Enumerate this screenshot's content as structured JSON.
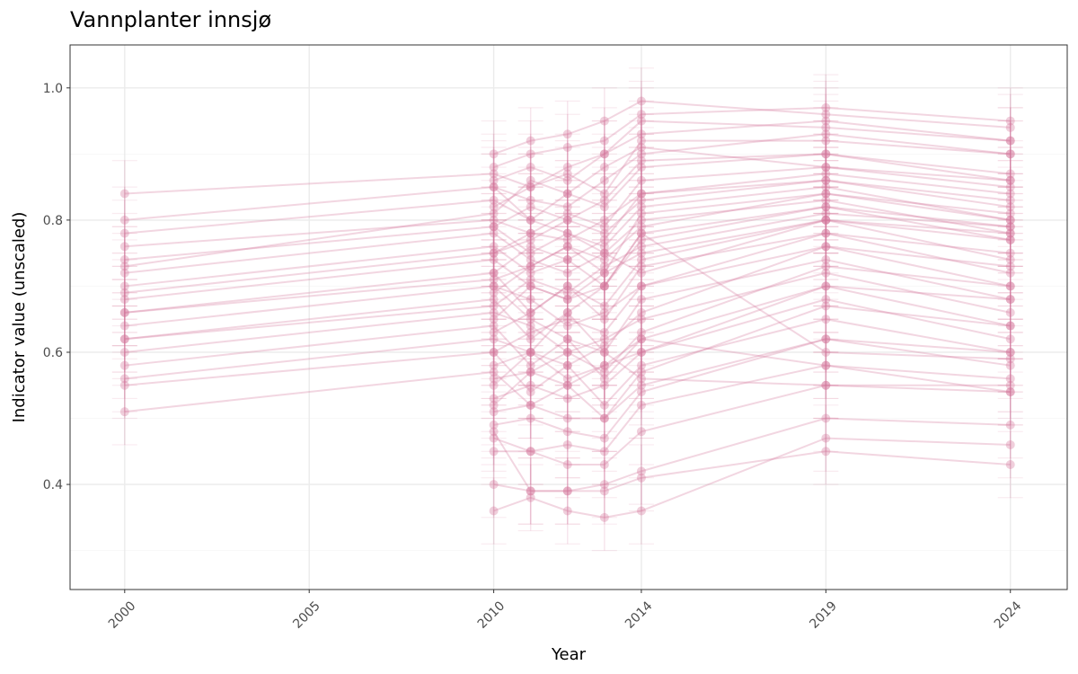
{
  "chart_data": {
    "type": "line",
    "title": "Vannplanter innsjø",
    "xlabel": "Year",
    "ylabel": "Indicator value (unscaled)",
    "x": [
      2000,
      2010,
      2011,
      2012,
      2013,
      2014,
      2019,
      2024
    ],
    "xticks": [
      2000,
      2005,
      2010,
      2014,
      2019,
      2024
    ],
    "yticks": [
      0.4,
      0.6,
      0.8,
      1.0
    ],
    "ytick_labels": [
      "0.4",
      "0.6",
      "0.8",
      "1.0"
    ],
    "xlim": [
      1998.52,
      2025.54
    ],
    "ylim": [
      0.241,
      1.065
    ],
    "grid": true,
    "error_halfwidth": 0.05,
    "series_color": "#D4769A",
    "series": [
      [
        0.84,
        0.87,
        0.85,
        0.88,
        0.9,
        0.93,
        0.95,
        0.92
      ],
      [
        0.8,
        0.85,
        0.83,
        0.82,
        0.86,
        0.9,
        0.93,
        0.9
      ],
      [
        0.78,
        0.83,
        0.8,
        0.84,
        0.82,
        0.88,
        0.9,
        0.86
      ],
      [
        0.76,
        0.8,
        0.78,
        0.77,
        0.8,
        0.84,
        0.87,
        0.84
      ],
      [
        0.74,
        0.79,
        0.75,
        0.78,
        0.76,
        0.82,
        0.85,
        0.8
      ],
      [
        0.72,
        0.78,
        0.74,
        0.72,
        0.75,
        0.8,
        0.83,
        0.78
      ],
      [
        0.7,
        0.76,
        0.72,
        0.74,
        0.7,
        0.78,
        0.82,
        0.77
      ],
      [
        0.68,
        0.74,
        0.7,
        0.68,
        0.72,
        0.75,
        0.8,
        0.74
      ],
      [
        0.66,
        0.72,
        0.66,
        0.7,
        0.65,
        0.73,
        0.78,
        0.72
      ],
      [
        0.64,
        0.7,
        0.68,
        0.64,
        0.66,
        0.7,
        0.76,
        0.7
      ],
      [
        0.62,
        0.68,
        0.62,
        0.66,
        0.6,
        0.68,
        0.74,
        0.68
      ],
      [
        0.6,
        0.66,
        0.64,
        0.6,
        0.62,
        0.65,
        0.72,
        0.66
      ],
      [
        0.58,
        0.64,
        0.58,
        0.62,
        0.56,
        0.62,
        0.7,
        0.64
      ],
      [
        0.56,
        0.62,
        0.6,
        0.56,
        0.58,
        0.6,
        0.68,
        0.62
      ],
      [
        0.55,
        0.6,
        0.54,
        0.58,
        0.52,
        0.58,
        0.65,
        0.6
      ],
      [
        0.51,
        0.57,
        0.52,
        0.5,
        0.5,
        0.55,
        0.62,
        0.58
      ],
      [
        0.69,
        0.75,
        0.77,
        0.8,
        0.78,
        0.83,
        0.86,
        0.82
      ],
      [
        0.73,
        0.81,
        0.86,
        0.84,
        0.88,
        0.91,
        0.88,
        0.85
      ],
      [
        0.66,
        0.71,
        0.73,
        0.76,
        0.74,
        0.79,
        0.84,
        0.8
      ],
      [
        0.62,
        0.67,
        0.71,
        0.69,
        0.73,
        0.76,
        0.81,
        0.79
      ],
      [
        null,
        0.9,
        0.92,
        0.93,
        0.95,
        0.98,
        0.96,
        0.94
      ],
      [
        null,
        0.88,
        0.9,
        0.91,
        0.92,
        0.96,
        0.97,
        0.95
      ],
      [
        null,
        0.86,
        0.88,
        0.86,
        0.9,
        0.95,
        0.94,
        0.92
      ],
      [
        null,
        0.82,
        0.85,
        0.87,
        0.84,
        0.92,
        0.92,
        0.9
      ],
      [
        null,
        0.79,
        0.82,
        0.8,
        0.83,
        0.89,
        0.9,
        0.87
      ],
      [
        null,
        0.75,
        0.78,
        0.81,
        0.79,
        0.86,
        0.88,
        0.86
      ],
      [
        null,
        0.72,
        0.76,
        0.74,
        0.77,
        0.84,
        0.86,
        0.83
      ],
      [
        null,
        0.69,
        0.73,
        0.76,
        0.72,
        0.81,
        0.84,
        0.81
      ],
      [
        null,
        0.65,
        0.7,
        0.68,
        0.7,
        0.77,
        0.82,
        0.79
      ],
      [
        null,
        0.63,
        0.66,
        0.7,
        0.67,
        0.74,
        0.8,
        0.77
      ],
      [
        null,
        0.6,
        0.63,
        0.65,
        0.63,
        0.7,
        0.78,
        0.75
      ],
      [
        null,
        0.58,
        0.6,
        0.58,
        0.61,
        0.66,
        0.76,
        0.73
      ],
      [
        null,
        0.56,
        0.57,
        0.6,
        0.57,
        0.63,
        0.73,
        0.7
      ],
      [
        null,
        0.53,
        0.55,
        0.53,
        0.55,
        0.6,
        0.7,
        0.68
      ],
      [
        null,
        0.51,
        0.52,
        0.55,
        0.5,
        0.57,
        0.67,
        0.64
      ],
      [
        null,
        0.49,
        0.5,
        0.48,
        0.47,
        0.54,
        0.62,
        0.6
      ],
      [
        null,
        0.47,
        0.45,
        0.46,
        0.45,
        0.52,
        0.58,
        0.56
      ],
      [
        null,
        0.45,
        0.45,
        0.43,
        0.43,
        0.48,
        0.55,
        0.54
      ],
      [
        null,
        0.48,
        0.39,
        0.39,
        0.4,
        0.42,
        0.5,
        0.49
      ],
      [
        null,
        0.36,
        0.38,
        0.36,
        0.35,
        0.36,
        0.47,
        0.46
      ],
      [
        null,
        0.4,
        0.39,
        0.39,
        0.39,
        0.41,
        0.45,
        0.43
      ],
      [
        null,
        0.55,
        0.6,
        0.66,
        0.7,
        0.78,
        0.6,
        0.59
      ],
      [
        null,
        0.52,
        0.57,
        0.55,
        0.58,
        0.62,
        0.58,
        0.54
      ],
      [
        null,
        0.7,
        0.65,
        0.62,
        0.6,
        0.56,
        0.55,
        0.55
      ],
      [
        null,
        0.85,
        0.8,
        0.78,
        0.75,
        0.72,
        0.8,
        0.78
      ]
    ]
  }
}
